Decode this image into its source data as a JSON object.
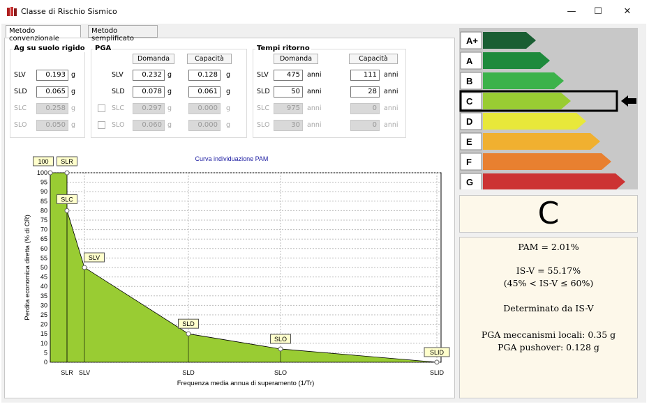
{
  "window": {
    "title": "Classe di Rischio Sismico",
    "minimize": "—",
    "maximize": "☐",
    "close": "✕"
  },
  "tabs": {
    "conventional": "Metodo convenzionale",
    "simplified": "Metodo semplificato"
  },
  "ag": {
    "title": "Ag su suolo rigido",
    "rows": [
      {
        "label": "SLV",
        "value": "0.193",
        "unit": "g"
      },
      {
        "label": "SLD",
        "value": "0.065",
        "unit": "g"
      },
      {
        "label": "SLC",
        "value": "0.258",
        "unit": "g"
      },
      {
        "label": "SLO",
        "value": "0.050",
        "unit": "g"
      }
    ]
  },
  "pga": {
    "title": "PGA",
    "demand_header": "Domanda",
    "capacity_header": "Capacità",
    "rows": [
      {
        "label": "SLV",
        "demand": "0.232",
        "capacity": "0.128",
        "unit": "g"
      },
      {
        "label": "SLD",
        "demand": "0.078",
        "capacity": "0.061",
        "unit": "g"
      },
      {
        "label": "SLC",
        "demand": "0.297",
        "capacity": "0.000",
        "unit": "g"
      },
      {
        "label": "SLO",
        "demand": "0.060",
        "capacity": "0.000",
        "unit": "g"
      }
    ]
  },
  "tr": {
    "title": "Tempi ritorno",
    "demand_header": "Domanda",
    "capacity_header": "Capacità",
    "rows": [
      {
        "label": "SLV",
        "demand": "475",
        "capacity": "111",
        "unit": "anni"
      },
      {
        "label": "SLD",
        "demand": "50",
        "capacity": "28",
        "unit": "anni"
      },
      {
        "label": "SLC",
        "demand": "975",
        "capacity": "0",
        "unit": "anni"
      },
      {
        "label": "SLO",
        "demand": "30",
        "capacity": "0",
        "unit": "anni"
      }
    ]
  },
  "chart_data": {
    "type": "area",
    "title": "Curva individuazione PAM",
    "xlabel": "Frequenza media annua di superamento (1/Tr)",
    "ylabel": "Perdita economica diretta (% di CR)",
    "ylim": [
      0,
      100
    ],
    "yticks": [
      0,
      5,
      10,
      15,
      20,
      25,
      30,
      35,
      40,
      45,
      50,
      55,
      60,
      65,
      70,
      75,
      80,
      85,
      90,
      95,
      100
    ],
    "xticks": [
      "SLR",
      "SLV",
      "SLD",
      "SLO",
      "SLID"
    ],
    "points": [
      {
        "label": "100",
        "x": 0.1,
        "y": 100
      },
      {
        "label": "SLR",
        "x": 0.1,
        "y": 100
      },
      {
        "label": "SLC",
        "x": 0.1,
        "y": 80
      },
      {
        "label": "SLV",
        "x": 0.009,
        "y": 50
      },
      {
        "label": "SLD",
        "x": 0.0357,
        "y": 15
      },
      {
        "label": "SLO",
        "x": 0.06,
        "y": 7
      },
      {
        "label": "SLID",
        "x": 0.1,
        "y": 0
      }
    ],
    "fill": "#99cc33"
  },
  "classes": [
    {
      "label": "A+",
      "color": "#1a5e33"
    },
    {
      "label": "A",
      "color": "#1e8a3c"
    },
    {
      "label": "B",
      "color": "#3cb24a"
    },
    {
      "label": "C",
      "color": "#99cc33"
    },
    {
      "label": "D",
      "color": "#e8e83a"
    },
    {
      "label": "E",
      "color": "#f0b030"
    },
    {
      "label": "F",
      "color": "#e88030"
    },
    {
      "label": "G",
      "color": "#cc3333"
    }
  ],
  "selected_class": "C",
  "result": {
    "pam": "PAM = 2.01%",
    "isv": "IS-V = 55.17%",
    "isv_range": "(45% < IS-V ≤ 60%)",
    "determined": "Determinato da IS-V",
    "pga_local": "PGA meccanismi locali: 0.35 g",
    "pga_pushover": "PGA pushover: 0.128 g"
  }
}
